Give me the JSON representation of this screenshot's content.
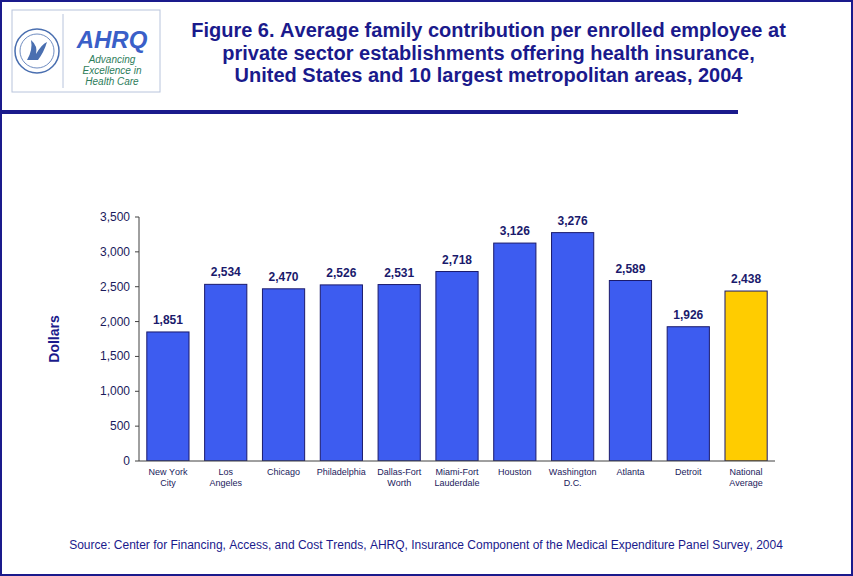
{
  "logo": {
    "agency": "AHRQ",
    "tagline": [
      "Advancing",
      "Excellence in",
      "Health Care"
    ]
  },
  "chart_data": {
    "type": "bar",
    "title": "Figure 6. Average family contribution per enrolled employee at private sector establishments offering health insurance, United States and 10 largest metropolitan areas, 2004",
    "y_label": "Dollars",
    "source": "Source: Center for Financing, Access, and Cost Trends, AHRQ, Insurance Component of the Medical Expenditure Panel Survey, 2004",
    "categories": [
      "New York City",
      "Los Angeles",
      "Chicago",
      "Philadelphia",
      "Dallas-Fort Worth",
      "Miami-Fort Lauderdale",
      "Houston",
      "Washington D.C.",
      "Atlanta",
      "Detroit",
      "National Average"
    ],
    "values": [
      1851,
      2534,
      2470,
      2526,
      2531,
      2718,
      3126,
      3276,
      2589,
      1926,
      2438
    ],
    "value_labels": [
      "1,851",
      "2,534",
      "2,470",
      "2,526",
      "2,531",
      "2,718",
      "3,126",
      "3,276",
      "2,589",
      "1,926",
      "2,438"
    ],
    "colors": [
      "#3d5cf0",
      "#3d5cf0",
      "#3d5cf0",
      "#3d5cf0",
      "#3d5cf0",
      "#3d5cf0",
      "#3d5cf0",
      "#3d5cf0",
      "#3d5cf0",
      "#3d5cf0",
      "#ffcc00"
    ],
    "data_labels": true,
    "grid": false,
    "ylim": [
      0,
      3500
    ],
    "yticks": [
      0,
      500,
      {
        "value": 1000,
        "label": "1,000"
      },
      {
        "value": 1500,
        "label": "1,500"
      },
      {
        "value": 2000,
        "label": "2,000"
      },
      {
        "value": 2500,
        "label": "2,500"
      },
      {
        "value": 3000,
        "label": "3,000"
      },
      {
        "value": 3500,
        "label": "3,500"
      }
    ]
  }
}
